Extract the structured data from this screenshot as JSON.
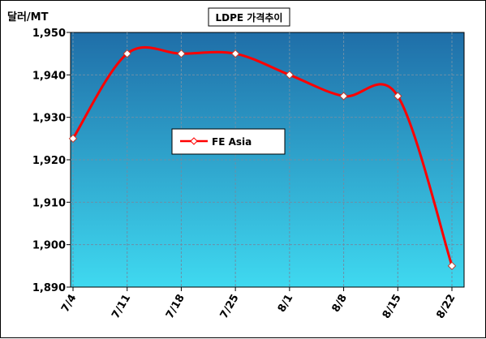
{
  "chart_data": {
    "type": "line",
    "title": "LDPE 가격추이",
    "ylabel": "달러/MT",
    "xlabel": "",
    "categories": [
      "7/4",
      "7/11",
      "7/18",
      "7/25",
      "8/1",
      "8/8",
      "8/15",
      "8/22"
    ],
    "series": [
      {
        "name": "FE Asia",
        "values": [
          1925,
          1945,
          1945,
          1945,
          1940,
          1935,
          1935,
          1895
        ],
        "color": "#ff0000"
      }
    ],
    "ylim": [
      1890,
      1950
    ],
    "yticks": [
      1890,
      1900,
      1910,
      1920,
      1930,
      1940,
      1950
    ],
    "ytick_labels": [
      "1,890",
      "1,900",
      "1,910",
      "1,920",
      "1,930",
      "1,940",
      "1,950"
    ],
    "grid": true,
    "legend_position": "center-left",
    "colors": {
      "plot_gradient_top": "#1f6ea8",
      "plot_gradient_bottom": "#3fd9f0",
      "line": "#ff0000",
      "marker_fill": "#ffffff"
    }
  }
}
